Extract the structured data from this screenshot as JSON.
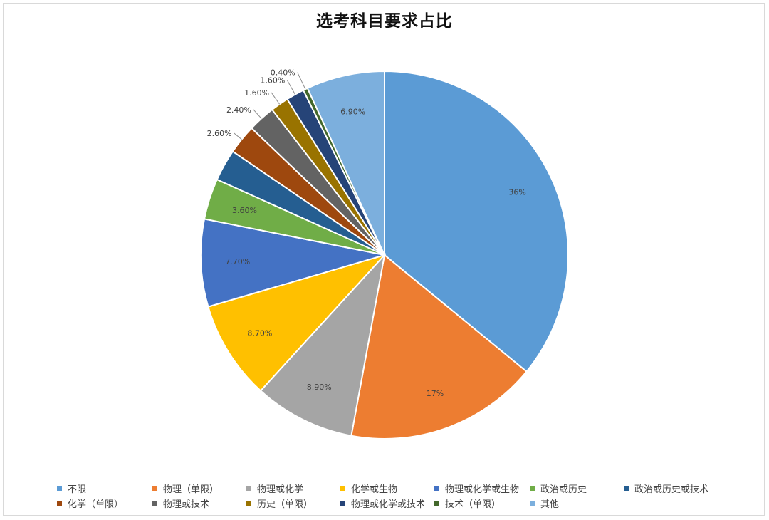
{
  "chart_data": {
    "type": "pie",
    "title": "选考科目要求占比",
    "legend_position": "bottom",
    "slices": [
      {
        "label": "不限",
        "value": 36,
        "display": "36%",
        "color": "#5b9bd5",
        "label_inside": true
      },
      {
        "label": "物理（单限）",
        "value": 17,
        "display": "17%",
        "color": "#ed7d31",
        "label_inside": true
      },
      {
        "label": "物理或化学",
        "value": 8.9,
        "display": "8.90%",
        "color": "#a5a5a5",
        "label_inside": true
      },
      {
        "label": "化学或生物",
        "value": 8.7,
        "display": "8.70%",
        "color": "#ffc000",
        "label_inside": true
      },
      {
        "label": "物理或化学或生物",
        "value": 7.7,
        "display": "7.70%",
        "color": "#4472c4",
        "label_inside": true
      },
      {
        "label": "政治或历史",
        "value": 3.6,
        "display": "3.60%",
        "color": "#70ad47",
        "label_inside": true
      },
      {
        "label": "政治或历史或技术",
        "value": 2.8,
        "display": "",
        "color": "#255e91",
        "label_inside": true
      },
      {
        "label": "化学（单限）",
        "value": 2.6,
        "display": "2.60%",
        "color": "#9e480e",
        "label_inside": false
      },
      {
        "label": "物理或技术",
        "value": 2.4,
        "display": "2.40%",
        "color": "#636363",
        "label_inside": false
      },
      {
        "label": "历史（单限）",
        "value": 1.6,
        "display": "1.60%",
        "color": "#997300",
        "label_inside": false
      },
      {
        "label": "物理或化学或技术",
        "value": 1.6,
        "display": "1.60%",
        "color": "#264478",
        "label_inside": false
      },
      {
        "label": "技术（单限）",
        "value": 0.4,
        "display": "0.40%",
        "color": "#43682b",
        "label_inside": false
      },
      {
        "label": "其他",
        "value": 6.9,
        "display": "6.90%",
        "color": "#7cafdd",
        "label_inside": true
      }
    ]
  }
}
